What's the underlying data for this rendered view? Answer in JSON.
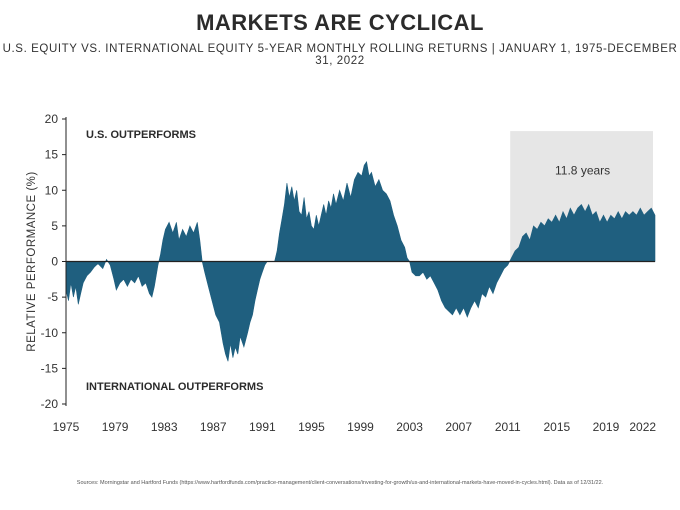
{
  "title": "MARKETS ARE CYCLICAL",
  "subtitle": "U.S. EQUITY VS. INTERNATIONAL EQUITY 5-YEAR MONTHLY ROLLING RETURNS | JANUARY 1, 1975-DECEMBER 31, 2022",
  "footnote": "Sources: Morningstar and Hartford Funds (https://www.hartfordfunds.com/practice-management/client-conversations/investing-for-growth/us-and-international-markets-have-moved-in-cycles.html). Data as of 12/31/22.",
  "colors": {
    "area": "#1f5f7f",
    "highlight": "#e6e6e6",
    "axis": "#222222"
  },
  "chart_data": {
    "type": "area",
    "title": "MARKETS ARE CYCLICAL",
    "xlabel": "",
    "ylabel": "RELATIVE PERFORMANCE (%)",
    "xlim": [
      1975,
      2023
    ],
    "ylim": [
      -20,
      20
    ],
    "x_ticks": [
      1975,
      1979,
      1983,
      1987,
      1991,
      1995,
      1999,
      2003,
      2007,
      2011,
      2015,
      2019,
      2022
    ],
    "y_ticks": [
      20,
      15,
      10,
      5,
      0,
      -5,
      -10,
      -15,
      -20
    ],
    "grid": false,
    "annotations": {
      "us_outperforms": "U.S. OUTPERFORMS",
      "intl_outperforms": "INTERNATIONAL OUTPERFORMS",
      "highlight_label": "11.8 years",
      "highlight_range": [
        2011.2,
        2023
      ]
    },
    "series": [
      {
        "values": [
          [
            1975.0,
            -4.0
          ],
          [
            1975.2,
            -5.5
          ],
          [
            1975.4,
            -3.0
          ],
          [
            1975.6,
            -5.0
          ],
          [
            1975.8,
            -3.5
          ],
          [
            1976.0,
            -6.0
          ],
          [
            1976.2,
            -4.5
          ],
          [
            1976.4,
            -3.0
          ],
          [
            1976.7,
            -2.0
          ],
          [
            1977.0,
            -1.5
          ],
          [
            1977.3,
            -0.8
          ],
          [
            1977.6,
            -0.3
          ],
          [
            1978.0,
            -1.0
          ],
          [
            1978.3,
            0.3
          ],
          [
            1978.6,
            -0.5
          ],
          [
            1978.9,
            -2.5
          ],
          [
            1979.1,
            -4.0
          ],
          [
            1979.4,
            -3.0
          ],
          [
            1979.7,
            -2.5
          ],
          [
            1980.0,
            -3.5
          ],
          [
            1980.3,
            -2.5
          ],
          [
            1980.6,
            -3.0
          ],
          [
            1980.9,
            -2.0
          ],
          [
            1981.2,
            -3.5
          ],
          [
            1981.5,
            -3.0
          ],
          [
            1981.8,
            -4.5
          ],
          [
            1982.0,
            -5.0
          ],
          [
            1982.2,
            -3.5
          ],
          [
            1982.5,
            -0.5
          ],
          [
            1982.7,
            1.0
          ],
          [
            1982.9,
            3.0
          ],
          [
            1983.1,
            4.5
          ],
          [
            1983.4,
            5.5
          ],
          [
            1983.7,
            4.0
          ],
          [
            1984.0,
            5.5
          ],
          [
            1984.2,
            3.0
          ],
          [
            1984.5,
            4.5
          ],
          [
            1984.8,
            3.5
          ],
          [
            1985.1,
            5.0
          ],
          [
            1985.4,
            4.0
          ],
          [
            1985.7,
            5.5
          ],
          [
            1985.9,
            3.0
          ],
          [
            1986.1,
            0.0
          ],
          [
            1986.3,
            -1.5
          ],
          [
            1986.6,
            -3.5
          ],
          [
            1986.9,
            -5.5
          ],
          [
            1987.2,
            -7.5
          ],
          [
            1987.5,
            -8.5
          ],
          [
            1987.8,
            -11.5
          ],
          [
            1988.0,
            -13.0
          ],
          [
            1988.2,
            -14.0
          ],
          [
            1988.4,
            -11.5
          ],
          [
            1988.6,
            -13.5
          ],
          [
            1988.8,
            -12.0
          ],
          [
            1989.0,
            -13.0
          ],
          [
            1989.2,
            -10.5
          ],
          [
            1989.5,
            -12.0
          ],
          [
            1989.8,
            -10.0
          ],
          [
            1990.0,
            -8.5
          ],
          [
            1990.2,
            -7.5
          ],
          [
            1990.4,
            -5.5
          ],
          [
            1990.6,
            -4.0
          ],
          [
            1990.8,
            -2.5
          ],
          [
            1991.0,
            -1.5
          ],
          [
            1991.2,
            -0.5
          ],
          [
            1991.4,
            0.0
          ],
          [
            1991.7,
            0.0
          ],
          [
            1992.0,
            0.0
          ],
          [
            1992.2,
            1.5
          ],
          [
            1992.4,
            4.0
          ],
          [
            1992.6,
            6.0
          ],
          [
            1992.8,
            8.0
          ],
          [
            1993.0,
            11.0
          ],
          [
            1993.2,
            9.0
          ],
          [
            1993.4,
            10.5
          ],
          [
            1993.6,
            8.5
          ],
          [
            1993.8,
            10.0
          ],
          [
            1994.0,
            7.0
          ],
          [
            1994.2,
            6.5
          ],
          [
            1994.4,
            9.0
          ],
          [
            1994.6,
            6.0
          ],
          [
            1994.8,
            7.0
          ],
          [
            1995.0,
            5.0
          ],
          [
            1995.2,
            4.5
          ],
          [
            1995.4,
            6.5
          ],
          [
            1995.6,
            5.0
          ],
          [
            1995.8,
            6.5
          ],
          [
            1996.0,
            8.0
          ],
          [
            1996.2,
            6.5
          ],
          [
            1996.4,
            8.5
          ],
          [
            1996.6,
            7.5
          ],
          [
            1996.8,
            9.5
          ],
          [
            1997.0,
            8.0
          ],
          [
            1997.3,
            10.0
          ],
          [
            1997.6,
            8.5
          ],
          [
            1997.9,
            11.0
          ],
          [
            1998.2,
            9.0
          ],
          [
            1998.5,
            11.5
          ],
          [
            1998.8,
            12.5
          ],
          [
            1999.1,
            12.0
          ],
          [
            1999.3,
            13.5
          ],
          [
            1999.5,
            14.0
          ],
          [
            1999.7,
            12.0
          ],
          [
            1999.9,
            12.5
          ],
          [
            2000.2,
            10.5
          ],
          [
            2000.5,
            11.5
          ],
          [
            2000.8,
            10.0
          ],
          [
            2001.1,
            9.5
          ],
          [
            2001.4,
            8.5
          ],
          [
            2001.7,
            6.5
          ],
          [
            2002.0,
            5.0
          ],
          [
            2002.3,
            3.0
          ],
          [
            2002.6,
            2.0
          ],
          [
            2002.8,
            0.5
          ],
          [
            2003.0,
            0.0
          ],
          [
            2003.2,
            -1.5
          ],
          [
            2003.5,
            -2.0
          ],
          [
            2003.8,
            -2.0
          ],
          [
            2004.1,
            -1.5
          ],
          [
            2004.4,
            -2.5
          ],
          [
            2004.7,
            -2.0
          ],
          [
            2005.0,
            -3.0
          ],
          [
            2005.3,
            -4.0
          ],
          [
            2005.6,
            -5.5
          ],
          [
            2005.9,
            -6.5
          ],
          [
            2006.2,
            -7.0
          ],
          [
            2006.5,
            -7.5
          ],
          [
            2006.8,
            -6.5
          ],
          [
            2007.1,
            -7.5
          ],
          [
            2007.4,
            -6.5
          ],
          [
            2007.7,
            -7.8
          ],
          [
            2008.0,
            -6.5
          ],
          [
            2008.3,
            -5.5
          ],
          [
            2008.6,
            -6.5
          ],
          [
            2008.9,
            -4.5
          ],
          [
            2009.2,
            -5.0
          ],
          [
            2009.5,
            -3.5
          ],
          [
            2009.8,
            -4.5
          ],
          [
            2010.1,
            -3.0
          ],
          [
            2010.4,
            -2.0
          ],
          [
            2010.7,
            -1.0
          ],
          [
            2011.0,
            -0.5
          ],
          [
            2011.3,
            0.5
          ],
          [
            2011.6,
            1.5
          ],
          [
            2011.9,
            2.0
          ],
          [
            2012.2,
            3.5
          ],
          [
            2012.5,
            4.0
          ],
          [
            2012.8,
            3.0
          ],
          [
            2013.1,
            5.0
          ],
          [
            2013.4,
            4.5
          ],
          [
            2013.7,
            5.5
          ],
          [
            2014.0,
            5.0
          ],
          [
            2014.3,
            6.0
          ],
          [
            2014.6,
            5.5
          ],
          [
            2014.9,
            6.5
          ],
          [
            2015.2,
            5.5
          ],
          [
            2015.5,
            7.0
          ],
          [
            2015.8,
            6.0
          ],
          [
            2016.1,
            7.5
          ],
          [
            2016.4,
            6.5
          ],
          [
            2016.7,
            7.5
          ],
          [
            2017.0,
            8.0
          ],
          [
            2017.3,
            7.0
          ],
          [
            2017.6,
            8.0
          ],
          [
            2017.9,
            6.5
          ],
          [
            2018.2,
            7.0
          ],
          [
            2018.5,
            5.5
          ],
          [
            2018.8,
            6.5
          ],
          [
            2019.1,
            5.5
          ],
          [
            2019.4,
            6.5
          ],
          [
            2019.7,
            6.0
          ],
          [
            2020.0,
            7.0
          ],
          [
            2020.3,
            6.0
          ],
          [
            2020.6,
            7.0
          ],
          [
            2020.9,
            6.5
          ],
          [
            2021.2,
            7.0
          ],
          [
            2021.5,
            6.5
          ],
          [
            2021.8,
            7.5
          ],
          [
            2022.1,
            6.5
          ],
          [
            2022.4,
            7.0
          ],
          [
            2022.7,
            7.5
          ],
          [
            2023.0,
            6.5
          ]
        ]
      }
    ]
  }
}
